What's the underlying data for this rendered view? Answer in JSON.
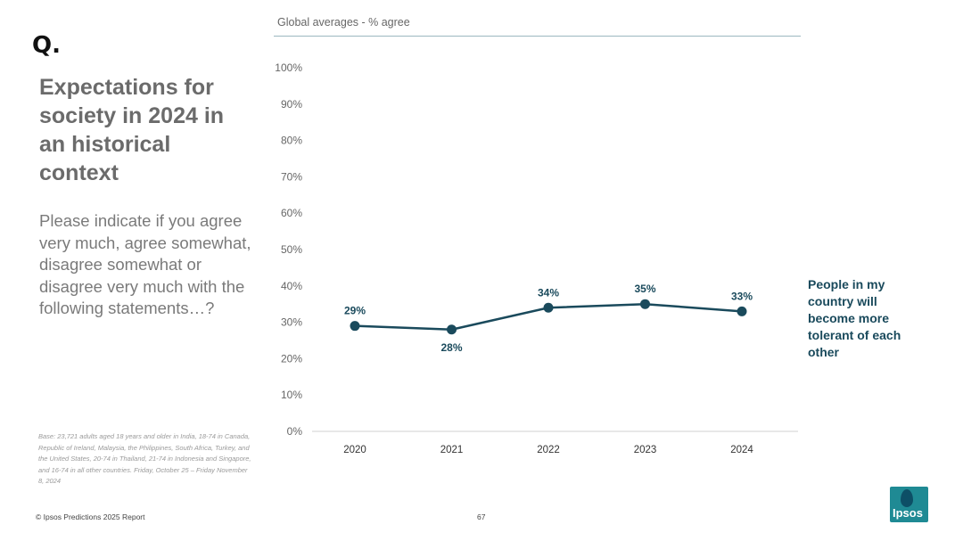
{
  "logo_mark": "Q.",
  "title": "Expectations for society in 2024 in an historical context",
  "question": "Please indicate if you agree very much, agree somewhat, disagree somewhat or disagree very much with the following statements…?",
  "base_note": "Base: 23,721 adults aged 18 years and older in India, 18-74 in Canada, Republic of Ireland, Malaysia, the Philippines, South Africa, Turkey, and the United States, 20-74 in Thailand, 21-74 in Indonesia and Singapore, and 16-74 in all other countries. Friday, October 25 – Friday November 8, 2024",
  "footer": {
    "copyright": "© Ipsos Predictions 2025 Report",
    "page_number": "67"
  },
  "brand": {
    "logo_text": "Ipsos",
    "color": "#1f8a94",
    "series_color": "#1a4a5c"
  },
  "chart_data": {
    "type": "line",
    "title": "Global averages - % agree",
    "categories": [
      "2020",
      "2021",
      "2022",
      "2023",
      "2024"
    ],
    "series": [
      {
        "name": "People in my country will become more tolerant of each other",
        "values": [
          29,
          28,
          34,
          35,
          33
        ],
        "labels": [
          "29%",
          "28%",
          "34%",
          "35%",
          "33%"
        ]
      }
    ],
    "ylim": [
      0,
      100
    ],
    "yticks": [
      "0%",
      "10%",
      "20%",
      "30%",
      "40%",
      "50%",
      "60%",
      "70%",
      "80%",
      "90%",
      "100%"
    ],
    "grid": false
  }
}
